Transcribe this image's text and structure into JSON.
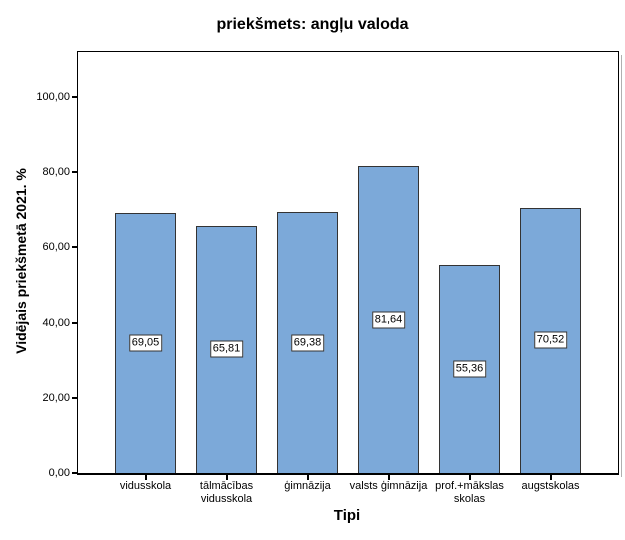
{
  "chart_data": {
    "type": "bar",
    "title": "priekšmets: angļu valoda",
    "xlabel": "Tipi",
    "ylabel": "Vidējais priekšmetā 2021. %",
    "categories": [
      "vidusskola",
      "tālmācības\nvidusskola",
      "ģimnāzija",
      "valsts ģimnāzija",
      "prof.+mākslas\nskolas",
      "augstskolas"
    ],
    "values": [
      69.05,
      65.81,
      69.38,
      81.64,
      55.36,
      70.52
    ],
    "value_labels": [
      "69,05",
      "65,81",
      "69,38",
      "81,64",
      "55,36",
      "70,52"
    ],
    "yticks": [
      0,
      20,
      40,
      60,
      80,
      100
    ],
    "ytick_labels": [
      "0,00",
      "20,00",
      "40,00",
      "60,00",
      "80,00",
      "100,00"
    ],
    "ylim": [
      0,
      112
    ],
    "grid": false,
    "legend": "none",
    "colors": {
      "bar_fill": "#7CA9D9",
      "bar_border": "#333333",
      "axis": "#000000",
      "background": "#ffffff",
      "label_box_bg": "#ffffff",
      "label_box_border": "#333333"
    }
  }
}
